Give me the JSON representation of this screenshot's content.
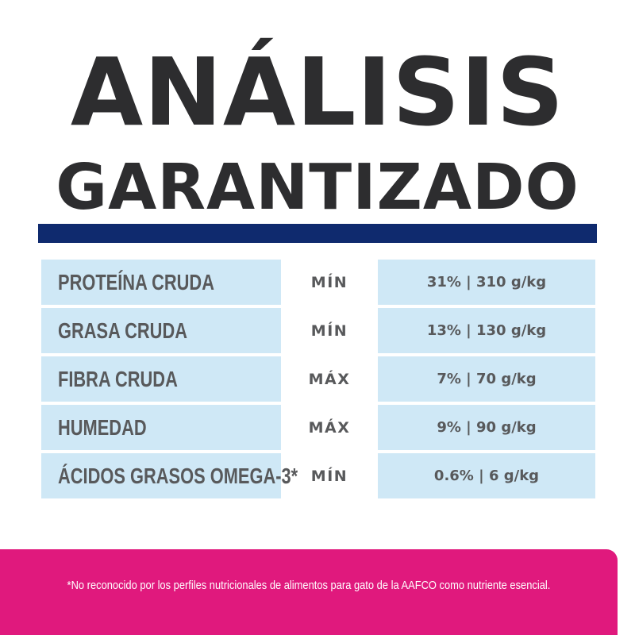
{
  "header": {
    "title_line1": "ANÁLISIS",
    "title_line2": "GARANTIZADO"
  },
  "colors": {
    "title": "#2d2d2f",
    "rule": "#0f2a6e",
    "cell_fill": "#cfe8f6",
    "cell_text": "#58595b",
    "footer": "#e0197d"
  },
  "rows": [
    {
      "name": "PROTEÍNA CRUDA",
      "kind": "MÍN",
      "value": "31% | 310 g/kg"
    },
    {
      "name": "GRASA CRUDA",
      "kind": "MÍN",
      "value": "13% | 130 g/kg"
    },
    {
      "name": "FIBRA CRUDA",
      "kind": "MÁX",
      "value": "7% | 70 g/kg"
    },
    {
      "name": "HUMEDAD",
      "kind": "MÁX",
      "value": "9% | 90 g/kg"
    },
    {
      "name": "ÁCIDOS GRASOS OMEGA-3*",
      "kind": "MÍN",
      "value": "0.6% | 6 g/kg"
    }
  ],
  "footer": {
    "note": "*No reconocido por los perfiles nutricionales de alimentos para gato de la AAFCO como nutriente esencial."
  }
}
